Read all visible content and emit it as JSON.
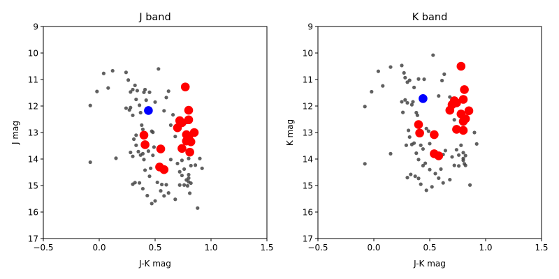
{
  "chart_data": [
    {
      "type": "scatter",
      "title": "J band",
      "xlabel": "J-K mag",
      "ylabel": "J mag",
      "xlim": [
        -0.5,
        1.5
      ],
      "ylim": [
        17,
        9
      ],
      "y_inverted": true,
      "xticks": [
        "−0.5",
        "0.0",
        "0.5",
        "1.0",
        "1.5"
      ],
      "xtick_values": [
        -0.5,
        0.0,
        0.5,
        1.0,
        1.5
      ],
      "yticks": [
        "9",
        "10",
        "11",
        "12",
        "13",
        "14",
        "15",
        "16",
        "17"
      ],
      "ytick_values": [
        9,
        10,
        11,
        12,
        13,
        14,
        15,
        16,
        17
      ],
      "grid": false,
      "series": [
        {
          "color": "#444444",
          "marker": "small-dot",
          "points": [
            [
              -0.08,
              11.98
            ],
            [
              -0.08,
              14.12
            ],
            [
              -0.02,
              11.45
            ],
            [
              0.04,
              10.77
            ],
            [
              0.08,
              11.32
            ],
            [
              0.12,
              10.67
            ],
            [
              0.15,
              13.97
            ],
            [
              0.24,
              10.73
            ],
            [
              0.26,
              11.02
            ],
            [
              0.24,
              12.08
            ],
            [
              0.27,
              12.15
            ],
            [
              0.28,
              11.47
            ],
            [
              0.3,
              11.38
            ],
            [
              0.32,
              11.22
            ],
            [
              0.28,
              12.06
            ],
            [
              0.3,
              12.35
            ],
            [
              0.33,
              11.75
            ],
            [
              0.34,
              11.42
            ],
            [
              0.36,
              11.97
            ],
            [
              0.37,
              12.25
            ],
            [
              0.38,
              12.72
            ],
            [
              0.39,
              12.88
            ],
            [
              0.4,
              11.48
            ],
            [
              0.41,
              11.38
            ],
            [
              0.42,
              11.78
            ],
            [
              0.45,
              11.48
            ],
            [
              0.47,
              12.95
            ],
            [
              0.48,
              12.99
            ],
            [
              0.49,
              13.55
            ],
            [
              0.5,
              11.85
            ],
            [
              0.53,
              10.6
            ],
            [
              0.58,
              12.18
            ],
            [
              0.6,
              11.68
            ],
            [
              0.62,
              11.44
            ],
            [
              0.64,
              12.72
            ],
            [
              0.66,
              12.33
            ],
            [
              0.68,
              13.15
            ],
            [
              0.7,
              12.88
            ],
            [
              0.72,
              14.48
            ],
            [
              0.74,
              14.05
            ],
            [
              0.76,
              14.38
            ],
            [
              0.78,
              12.62
            ],
            [
              0.8,
              13.98
            ],
            [
              0.82,
              14.25
            ],
            [
              0.84,
              13.08
            ],
            [
              0.86,
              14.23
            ],
            [
              0.88,
              15.85
            ],
            [
              0.9,
              13.98
            ],
            [
              0.92,
              14.35
            ],
            [
              0.28,
              13.75
            ],
            [
              0.3,
              13.9
            ],
            [
              0.31,
              13.25
            ],
            [
              0.33,
              13.48
            ],
            [
              0.35,
              13.72
            ],
            [
              0.37,
              13.85
            ],
            [
              0.39,
              13.8
            ],
            [
              0.4,
              14.02
            ],
            [
              0.42,
              13.55
            ],
            [
              0.44,
              13.7
            ],
            [
              0.46,
              14.35
            ],
            [
              0.48,
              13.86
            ],
            [
              0.3,
              14.95
            ],
            [
              0.32,
              14.89
            ],
            [
              0.36,
              14.9
            ],
            [
              0.39,
              15.12
            ],
            [
              0.41,
              14.42
            ],
            [
              0.43,
              15.38
            ],
            [
              0.45,
              14.65
            ],
            [
              0.47,
              15.68
            ],
            [
              0.5,
              15.58
            ],
            [
              0.52,
              14.88
            ],
            [
              0.55,
              15.2
            ],
            [
              0.56,
              14.96
            ],
            [
              0.58,
              15.39
            ],
            [
              0.6,
              14.97
            ],
            [
              0.62,
              15.28
            ],
            [
              0.64,
              14.02
            ],
            [
              0.68,
              15.52
            ],
            [
              0.7,
              14.17
            ],
            [
              0.72,
              14.98
            ],
            [
              0.74,
              14.62
            ],
            [
              0.76,
              14.98
            ],
            [
              0.78,
              14.79
            ],
            [
              0.79,
              15.01
            ],
            [
              0.8,
              14.86
            ],
            [
              0.81,
              15.29
            ],
            [
              0.8,
              14.72
            ],
            [
              0.82,
              14.91
            ],
            [
              0.8,
              14.59
            ],
            [
              0.33,
              13.1
            ]
          ]
        },
        {
          "color": "#ff0000",
          "marker": "large-dot",
          "points": [
            [
              0.77,
              11.28
            ],
            [
              0.8,
              12.16
            ],
            [
              0.8,
              12.52
            ],
            [
              0.72,
              12.55
            ],
            [
              0.74,
              12.63
            ],
            [
              0.7,
              12.82
            ],
            [
              0.78,
              13.08
            ],
            [
              0.85,
              13.0
            ],
            [
              0.8,
              13.2
            ],
            [
              0.78,
              13.32
            ],
            [
              0.82,
              13.35
            ],
            [
              0.4,
              13.1
            ],
            [
              0.41,
              13.46
            ],
            [
              0.55,
              13.62
            ],
            [
              0.74,
              13.6
            ],
            [
              0.81,
              13.74
            ],
            [
              0.54,
              14.3
            ],
            [
              0.58,
              14.4
            ]
          ]
        },
        {
          "color": "#0000ff",
          "marker": "large-dot",
          "points": [
            [
              0.44,
              12.17
            ]
          ]
        }
      ]
    },
    {
      "type": "scatter",
      "title": "K band",
      "xlabel": "J-K mag",
      "ylabel": "K mag",
      "xlim": [
        -0.5,
        1.5
      ],
      "ylim": [
        17,
        9
      ],
      "y_inverted": true,
      "xticks": [
        "−0.5",
        "0.0",
        "0.5",
        "1.0",
        "1.5"
      ],
      "xtick_values": [
        -0.5,
        0.0,
        0.5,
        1.0,
        1.5
      ],
      "yticks": [
        "9",
        "10",
        "11",
        "12",
        "13",
        "14",
        "15",
        "16",
        "17"
      ],
      "ytick_values": [
        9,
        10,
        11,
        12,
        13,
        14,
        15,
        16,
        17
      ],
      "grid": false,
      "series": [
        {
          "color": "#444444",
          "marker": "small-dot",
          "points": [
            [
              -0.08,
              12.02
            ],
            [
              -0.08,
              14.18
            ],
            [
              -0.02,
              11.46
            ],
            [
              0.04,
              10.69
            ],
            [
              0.08,
              11.24
            ],
            [
              0.15,
              10.53
            ],
            [
              0.15,
              13.8
            ],
            [
              0.25,
              10.47
            ],
            [
              0.27,
              10.75
            ],
            [
              0.25,
              11.84
            ],
            [
              0.28,
              11.77
            ],
            [
              0.3,
              11.88
            ],
            [
              0.3,
              11.1
            ],
            [
              0.32,
              11.03
            ],
            [
              0.28,
              10.93
            ],
            [
              0.36,
              11.3
            ],
            [
              0.35,
              11.84
            ],
            [
              0.38,
              12.25
            ],
            [
              0.39,
              12.35
            ],
            [
              0.4,
              10.98
            ],
            [
              0.42,
              11.75
            ],
            [
              0.45,
              10.99
            ],
            [
              0.47,
              12.85
            ],
            [
              0.49,
              12.95
            ],
            [
              0.5,
              13.42
            ],
            [
              0.53,
              10.08
            ],
            [
              0.58,
              11.62
            ],
            [
              0.61,
              11.04
            ],
            [
              0.63,
              10.8
            ],
            [
              0.66,
              12.14
            ],
            [
              0.68,
              11.66
            ],
            [
              0.72,
              12.52
            ],
            [
              0.74,
              13.65
            ],
            [
              0.76,
              13.85
            ],
            [
              0.8,
              13.98
            ],
            [
              0.82,
              14.24
            ],
            [
              0.86,
              14.98
            ],
            [
              0.9,
              13.0
            ],
            [
              0.92,
              13.43
            ],
            [
              0.29,
              13.48
            ],
            [
              0.31,
              12.92
            ],
            [
              0.32,
              13.17
            ],
            [
              0.34,
              13.45
            ],
            [
              0.36,
              13.4
            ],
            [
              0.38,
              13.78
            ],
            [
              0.4,
              14.02
            ],
            [
              0.42,
              13.48
            ],
            [
              0.44,
              13.62
            ],
            [
              0.46,
              14.16
            ],
            [
              0.3,
              14.7
            ],
            [
              0.33,
              14.58
            ],
            [
              0.37,
              14.65
            ],
            [
              0.4,
              14.73
            ],
            [
              0.42,
              14.95
            ],
            [
              0.44,
              14.25
            ],
            [
              0.47,
              15.18
            ],
            [
              0.5,
              14.4
            ],
            [
              0.52,
              15.05
            ],
            [
              0.55,
              14.55
            ],
            [
              0.58,
              14.72
            ],
            [
              0.6,
              14.38
            ],
            [
              0.62,
              14.9
            ],
            [
              0.64,
              13.68
            ],
            [
              0.68,
              14.78
            ],
            [
              0.7,
              13.92
            ],
            [
              0.72,
              14.24
            ],
            [
              0.76,
              14.26
            ],
            [
              0.78,
              13.48
            ],
            [
              0.8,
              14.05
            ],
            [
              0.81,
              14.18
            ],
            [
              0.82,
              13.87
            ],
            [
              0.8,
              13.76
            ],
            [
              0.62,
              13.83
            ],
            [
              0.26,
              12.24
            ],
            [
              0.34,
              11.95
            ]
          ]
        },
        {
          "color": "#ff0000",
          "marker": "large-dot",
          "points": [
            [
              0.78,
              10.5
            ],
            [
              0.81,
              11.38
            ],
            [
              0.8,
              11.75
            ],
            [
              0.72,
              11.8
            ],
            [
              0.74,
              11.88
            ],
            [
              0.7,
              11.95
            ],
            [
              0.68,
              12.16
            ],
            [
              0.85,
              12.18
            ],
            [
              0.78,
              12.3
            ],
            [
              0.82,
              12.48
            ],
            [
              0.8,
              12.58
            ],
            [
              0.74,
              12.88
            ],
            [
              0.8,
              12.92
            ],
            [
              0.4,
              12.7
            ],
            [
              0.41,
              13.02
            ],
            [
              0.54,
              13.08
            ],
            [
              0.54,
              13.8
            ],
            [
              0.58,
              13.88
            ]
          ]
        },
        {
          "color": "#0000ff",
          "marker": "large-dot",
          "points": [
            [
              0.44,
              11.72
            ]
          ]
        }
      ]
    }
  ]
}
